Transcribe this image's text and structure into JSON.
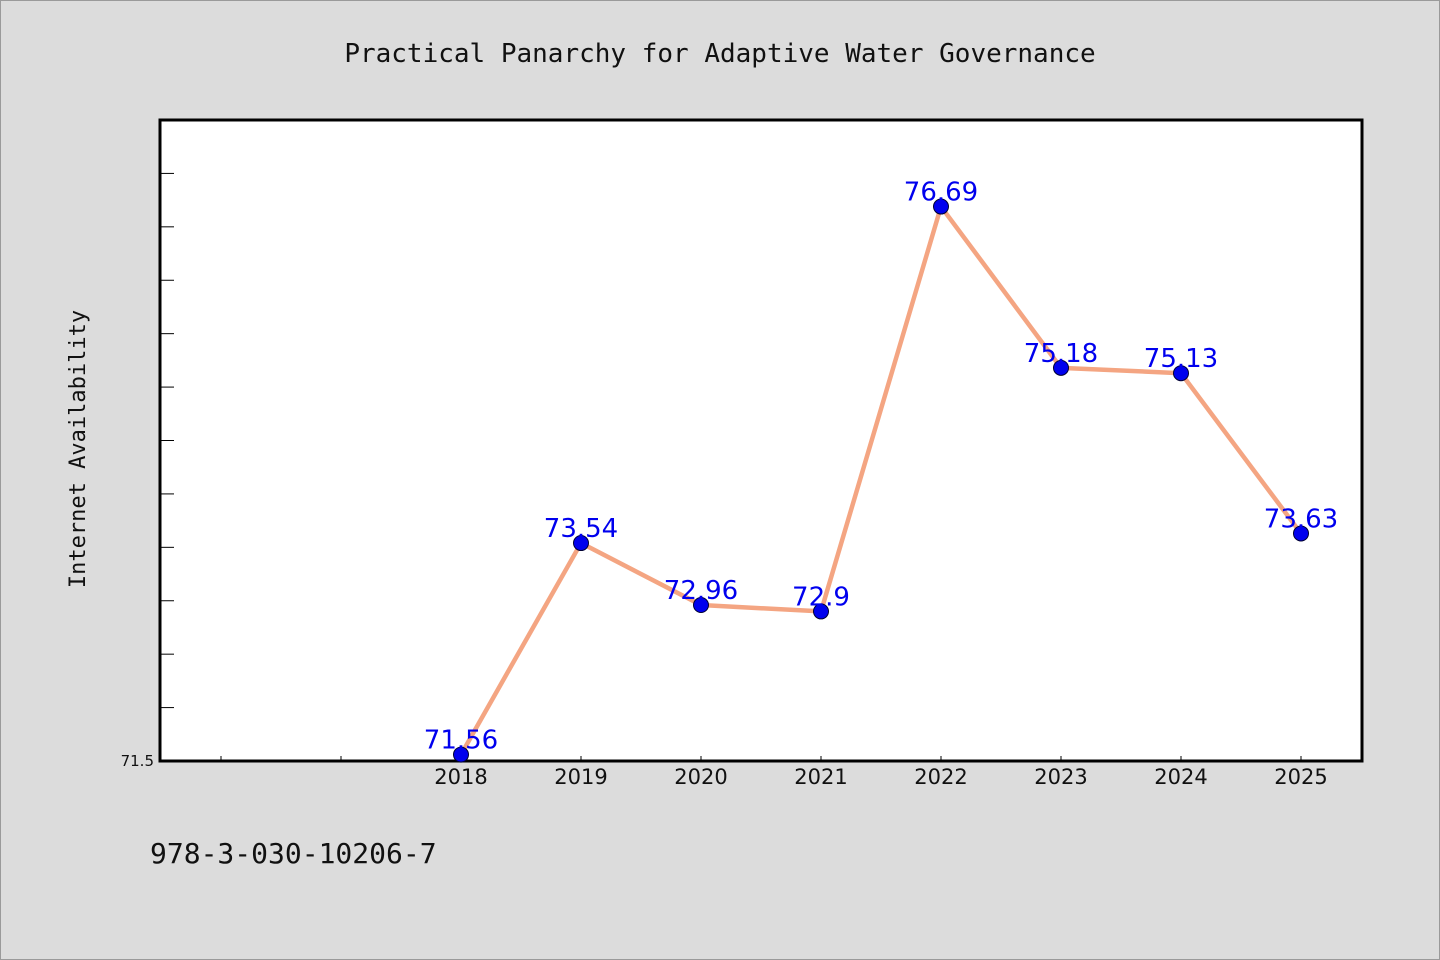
{
  "colors": {
    "background": "#dcdcdc",
    "plot_background": "#ffffff",
    "line": "#f4a582",
    "marker": "#0000ee",
    "data_label": "#0000ee"
  },
  "footnote": "978-3-030-10206-7",
  "chart_data": {
    "type": "line",
    "title": "Practical Panarchy for Adaptive Water Governance",
    "xlabel": "",
    "ylabel": "Internet Availability",
    "categories": [
      "2018",
      "2019",
      "2020",
      "2021",
      "2022",
      "2023",
      "2024",
      "2025"
    ],
    "series": [
      {
        "values": [
          71.56,
          73.54,
          72.96,
          72.9,
          76.69,
          75.18,
          75.13,
          73.63
        ],
        "labels": [
          "71.56",
          "73.54",
          "72.96",
          "72.9",
          "76.69",
          "75.18",
          "75.13",
          "73.63"
        ]
      }
    ],
    "ylim": [
      71.5,
      77.5
    ],
    "y_tick_labels": [
      "71.5"
    ],
    "grid": false,
    "legend": "none"
  }
}
